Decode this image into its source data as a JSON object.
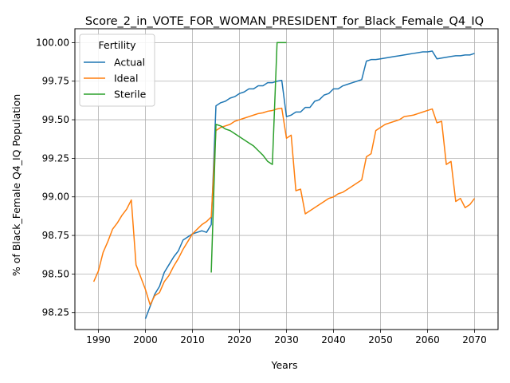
{
  "chart_data": {
    "type": "line",
    "title": "Score_2_in_VOTE_FOR_WOMAN_PRESIDENT_for_Black_Female_Q4_IQ",
    "xlabel": "Years",
    "ylabel": "% of Black_Female Q4_IQ Population",
    "xlim": [
      1985,
      2075
    ],
    "ylim": [
      98.14,
      100.09
    ],
    "xticks": [
      1990,
      2000,
      2010,
      2020,
      2030,
      2040,
      2050,
      2060,
      2070
    ],
    "yticks": [
      98.25,
      98.5,
      98.75,
      99.0,
      99.25,
      99.5,
      99.75,
      100.0
    ],
    "xtick_labels": [
      "1990",
      "2000",
      "2010",
      "2020",
      "2030",
      "2040",
      "2050",
      "2060",
      "2070"
    ],
    "ytick_labels": [
      "98.25",
      "98.50",
      "98.75",
      "99.00",
      "99.25",
      "99.50",
      "99.75",
      "100.00"
    ],
    "grid": true,
    "legend": {
      "title": "Fertility",
      "placement": "top-left"
    },
    "series": [
      {
        "name": "Actual",
        "color": "#1f77b4",
        "points": [
          [
            2000,
            98.21
          ],
          [
            2001,
            98.29
          ],
          [
            2002,
            98.37
          ],
          [
            2003,
            98.42
          ],
          [
            2004,
            98.51
          ],
          [
            2005,
            98.56
          ],
          [
            2006,
            98.61
          ],
          [
            2007,
            98.65
          ],
          [
            2008,
            98.72
          ],
          [
            2009,
            98.74
          ],
          [
            2010,
            98.76
          ],
          [
            2011,
            98.77
          ],
          [
            2012,
            98.78
          ],
          [
            2013,
            98.77
          ],
          [
            2014,
            98.82
          ],
          [
            2015,
            99.59
          ],
          [
            2016,
            99.61
          ],
          [
            2017,
            99.62
          ],
          [
            2018,
            99.64
          ],
          [
            2019,
            99.65
          ],
          [
            2020,
            99.67
          ],
          [
            2021,
            99.68
          ],
          [
            2022,
            99.7
          ],
          [
            2023,
            99.7
          ],
          [
            2024,
            99.72
          ],
          [
            2025,
            99.72
          ],
          [
            2026,
            99.74
          ],
          [
            2027,
            99.74
          ],
          [
            2028,
            99.75
          ],
          [
            2029,
            99.755
          ],
          [
            2030,
            99.52
          ],
          [
            2031,
            99.53
          ],
          [
            2032,
            99.55
          ],
          [
            2033,
            99.55
          ],
          [
            2034,
            99.58
          ],
          [
            2035,
            99.58
          ],
          [
            2036,
            99.62
          ],
          [
            2037,
            99.63
          ],
          [
            2038,
            99.66
          ],
          [
            2039,
            99.67
          ],
          [
            2040,
            99.7
          ],
          [
            2041,
            99.7
          ],
          [
            2042,
            99.72
          ],
          [
            2043,
            99.73
          ],
          [
            2044,
            99.74
          ],
          [
            2045,
            99.75
          ],
          [
            2046,
            99.76
          ],
          [
            2047,
            99.88
          ],
          [
            2048,
            99.89
          ],
          [
            2049,
            99.89
          ],
          [
            2050,
            99.895
          ],
          [
            2051,
            99.9
          ],
          [
            2052,
            99.905
          ],
          [
            2053,
            99.91
          ],
          [
            2054,
            99.915
          ],
          [
            2055,
            99.92
          ],
          [
            2056,
            99.925
          ],
          [
            2057,
            99.93
          ],
          [
            2058,
            99.935
          ],
          [
            2059,
            99.94
          ],
          [
            2060,
            99.94
          ],
          [
            2061,
            99.945
          ],
          [
            2062,
            99.895
          ],
          [
            2063,
            99.9
          ],
          [
            2064,
            99.905
          ],
          [
            2065,
            99.91
          ],
          [
            2066,
            99.915
          ],
          [
            2067,
            99.915
          ],
          [
            2068,
            99.92
          ],
          [
            2069,
            99.92
          ],
          [
            2070,
            99.93
          ]
        ]
      },
      {
        "name": "Ideal",
        "color": "#ff7f0e",
        "points": [
          [
            1989,
            98.45
          ],
          [
            1990,
            98.52
          ],
          [
            1991,
            98.64
          ],
          [
            1992,
            98.71
          ],
          [
            1993,
            98.79
          ],
          [
            1994,
            98.83
          ],
          [
            1995,
            98.88
          ],
          [
            1996,
            98.92
          ],
          [
            1997,
            98.98
          ],
          [
            1998,
            98.56
          ],
          [
            1999,
            98.48
          ],
          [
            2000,
            98.4
          ],
          [
            2001,
            98.3
          ],
          [
            2002,
            98.36
          ],
          [
            2003,
            98.38
          ],
          [
            2004,
            98.45
          ],
          [
            2005,
            98.49
          ],
          [
            2006,
            98.55
          ],
          [
            2007,
            98.6
          ],
          [
            2008,
            98.66
          ],
          [
            2009,
            98.71
          ],
          [
            2010,
            98.76
          ],
          [
            2011,
            98.79
          ],
          [
            2012,
            98.82
          ],
          [
            2013,
            98.84
          ],
          [
            2014,
            98.87
          ],
          [
            2015,
            99.43
          ],
          [
            2016,
            99.45
          ],
          [
            2017,
            99.46
          ],
          [
            2018,
            99.47
          ],
          [
            2019,
            99.49
          ],
          [
            2020,
            99.5
          ],
          [
            2021,
            99.51
          ],
          [
            2022,
            99.52
          ],
          [
            2023,
            99.53
          ],
          [
            2024,
            99.54
          ],
          [
            2025,
            99.545
          ],
          [
            2026,
            99.555
          ],
          [
            2027,
            99.56
          ],
          [
            2028,
            99.57
          ],
          [
            2029,
            99.575
          ],
          [
            2030,
            99.38
          ],
          [
            2031,
            99.4
          ],
          [
            2032,
            99.04
          ],
          [
            2033,
            99.05
          ],
          [
            2034,
            98.89
          ],
          [
            2035,
            98.91
          ],
          [
            2036,
            98.93
          ],
          [
            2037,
            98.95
          ],
          [
            2038,
            98.97
          ],
          [
            2039,
            98.99
          ],
          [
            2040,
            99.0
          ],
          [
            2041,
            99.02
          ],
          [
            2042,
            99.03
          ],
          [
            2043,
            99.05
          ],
          [
            2044,
            99.07
          ],
          [
            2045,
            99.09
          ],
          [
            2046,
            99.11
          ],
          [
            2047,
            99.26
          ],
          [
            2048,
            99.28
          ],
          [
            2049,
            99.43
          ],
          [
            2050,
            99.45
          ],
          [
            2051,
            99.47
          ],
          [
            2052,
            99.48
          ],
          [
            2053,
            99.49
          ],
          [
            2054,
            99.5
          ],
          [
            2055,
            99.52
          ],
          [
            2056,
            99.525
          ],
          [
            2057,
            99.53
          ],
          [
            2058,
            99.54
          ],
          [
            2059,
            99.55
          ],
          [
            2060,
            99.56
          ],
          [
            2061,
            99.57
          ],
          [
            2062,
            99.48
          ],
          [
            2063,
            99.49
          ],
          [
            2064,
            99.21
          ],
          [
            2065,
            99.23
          ],
          [
            2066,
            98.97
          ],
          [
            2067,
            98.99
          ],
          [
            2068,
            98.93
          ],
          [
            2069,
            98.95
          ],
          [
            2070,
            98.99
          ]
        ]
      },
      {
        "name": "Sterile",
        "color": "#2ca02c",
        "points": [
          [
            2014,
            98.51
          ],
          [
            2015,
            99.47
          ],
          [
            2016,
            99.46
          ],
          [
            2017,
            99.44
          ],
          [
            2018,
            99.43
          ],
          [
            2019,
            99.41
          ],
          [
            2020,
            99.39
          ],
          [
            2021,
            99.37
          ],
          [
            2022,
            99.35
          ],
          [
            2023,
            99.33
          ],
          [
            2024,
            99.3
          ],
          [
            2025,
            99.27
          ],
          [
            2026,
            99.23
          ],
          [
            2027,
            99.21
          ],
          [
            2028,
            100.0
          ],
          [
            2029,
            100.0
          ],
          [
            2030,
            100.0
          ]
        ]
      }
    ]
  }
}
